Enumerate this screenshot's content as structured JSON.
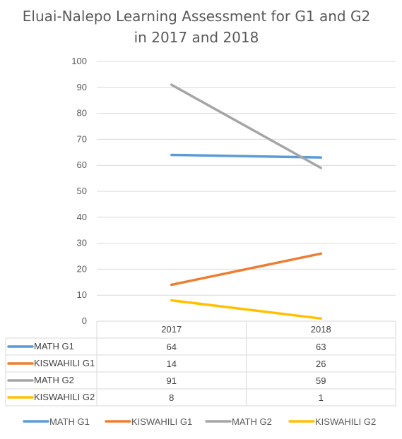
{
  "chart_data": {
    "type": "line",
    "title": "Eluai-Nalepo Learning Assessment for G1 and G2",
    "subtitle": "in 2017 and 2018",
    "categories": [
      "2017",
      "2018"
    ],
    "ylim": [
      0,
      100
    ],
    "yticks": [
      "0",
      "10",
      "20",
      "30",
      "40",
      "50",
      "60",
      "70",
      "80",
      "90",
      "100"
    ],
    "grid": true,
    "legend_position": "bottom",
    "data_table": true,
    "series": [
      {
        "name": "MATH G1",
        "values": [
          64,
          63
        ],
        "color": "#5B9BD5"
      },
      {
        "name": "KISWAHILI G1",
        "values": [
          14,
          26
        ],
        "color": "#ED7D31"
      },
      {
        "name": "MATH G2",
        "values": [
          91,
          59
        ],
        "color": "#A5A5A5"
      },
      {
        "name": "KISWAHILI G2",
        "values": [
          8,
          1
        ],
        "color": "#FFC000"
      }
    ]
  }
}
